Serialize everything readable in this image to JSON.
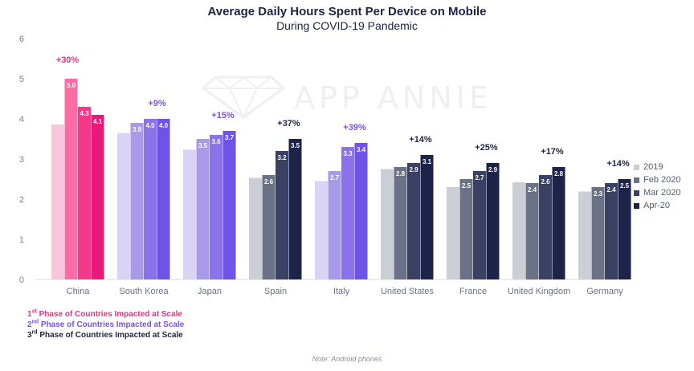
{
  "title": "Average Daily Hours Spent Per Device on Mobile",
  "subtitle": "During COVID-19 Pandemic",
  "watermark": "APP ANNIE",
  "footnote": "Note: Android phones",
  "phases": [
    {
      "ord": "1",
      "sup": "st",
      "text": " Phase of Countries Impacted  at Scale",
      "color": "#ec2f7f"
    },
    {
      "ord": "2",
      "sup": "nd",
      "text": " Phase of Countries Impacted  at Scale",
      "color": "#7a52e0"
    },
    {
      "ord": "3",
      "sup": "rd",
      "text": " Phase of Countries Impacted  at Scale",
      "color": "#1e2340"
    }
  ],
  "chart_data": {
    "type": "bar",
    "title": "Average Daily Hours Spent Per Device on Mobile",
    "subtitle": "During COVID-19 Pandemic",
    "ylim": [
      0,
      6
    ],
    "yticks": [
      0,
      1,
      2,
      3,
      4,
      5,
      6
    ],
    "grid": false,
    "legend_position": "right",
    "categories": [
      "China",
      "South Korea",
      "Japan",
      "Spain",
      "Italy",
      "United States",
      "France",
      "United Kingdom",
      "Germany"
    ],
    "series": [
      {
        "name": "2019",
        "values": [
          3.86,
          3.65,
          3.23,
          2.53,
          2.45,
          2.75,
          2.3,
          2.42,
          2.19
        ]
      },
      {
        "name": "Feb 2020",
        "values": [
          5.0,
          3.9,
          3.5,
          2.6,
          2.7,
          2.8,
          2.5,
          2.4,
          2.3
        ]
      },
      {
        "name": "Mar 2020",
        "values": [
          4.3,
          4.0,
          3.6,
          3.2,
          3.3,
          2.9,
          2.7,
          2.6,
          2.4
        ]
      },
      {
        "name": "Apr-20",
        "values": [
          4.1,
          4.0,
          3.7,
          3.5,
          3.4,
          3.1,
          2.9,
          2.8,
          2.5
        ]
      }
    ],
    "data_labels": [
      [
        null,
        "5.0",
        "4.3",
        "4.1"
      ],
      [
        null,
        "3.9",
        "4.0",
        "4.0"
      ],
      [
        null,
        "3.5",
        "3.6",
        "3.7"
      ],
      [
        null,
        "2.6",
        "3.2",
        "3.5"
      ],
      [
        null,
        "2.7",
        "3.3",
        "3.4"
      ],
      [
        null,
        "2.8",
        "2.9",
        "3.1"
      ],
      [
        null,
        "2.5",
        "2.7",
        "2.9"
      ],
      [
        null,
        "2.4",
        "2.6",
        "2.8"
      ],
      [
        null,
        "2.3",
        "2.4",
        "2.5"
      ]
    ],
    "growth_labels": [
      "+30%",
      "+9%",
      "+15%",
      "+37%",
      "+39%",
      "+14%",
      "+25%",
      "+17%",
      "+14%"
    ],
    "phase": [
      1,
      2,
      2,
      3,
      2,
      3,
      3,
      3,
      3
    ],
    "colors": {
      "phase1": [
        "#f7c6dc",
        "#fb6ca6",
        "#f4398a",
        "#e8197a"
      ],
      "phase2": [
        "#d9d4f5",
        "#a89ae8",
        "#8b72ea",
        "#6f52e6"
      ],
      "phase3": [
        "#ccced5",
        "#6b7287",
        "#3a4163",
        "#1e2449"
      ],
      "growth": {
        "1": "#ec2f7f",
        "2": "#7a52e0",
        "3": "#1e2340"
      },
      "legend": [
        "#ccced5",
        "#6b7287",
        "#3a4163",
        "#1e2449"
      ]
    }
  }
}
